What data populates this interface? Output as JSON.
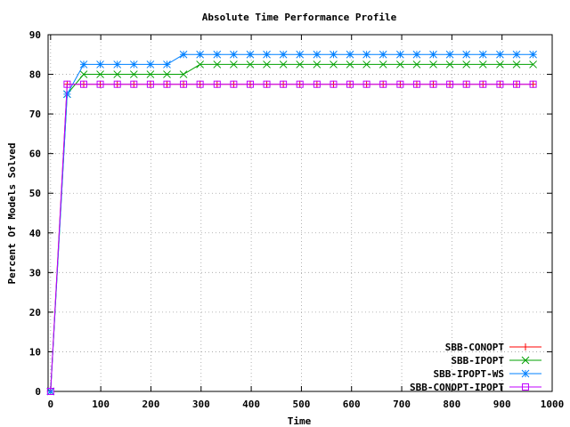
{
  "chart_data": {
    "type": "line",
    "title": "Absolute Time Performance Profile",
    "xlabel": "Time",
    "ylabel": "Percent Of Models Solved",
    "xlim": [
      -5,
      1000
    ],
    "ylim": [
      0,
      90
    ],
    "x_ticks": [
      0,
      100,
      200,
      300,
      400,
      500,
      600,
      700,
      800,
      900,
      1000
    ],
    "y_ticks": [
      0,
      10,
      20,
      30,
      40,
      50,
      60,
      70,
      80,
      90
    ],
    "grid": true,
    "legend_position": "bottom-right",
    "series": [
      {
        "name": "SBB-CONOPT",
        "color": "#ff0000",
        "marker": "plus",
        "x": [
          0,
          33,
          66,
          99,
          133,
          166,
          199,
          232,
          265,
          298,
          332,
          365,
          398,
          431,
          464,
          497,
          531,
          564,
          597,
          630,
          663,
          697,
          730,
          763,
          796,
          829,
          862,
          896,
          929,
          962
        ],
        "y": [
          0,
          77.5,
          77.5,
          77.5,
          77.5,
          77.5,
          77.5,
          77.5,
          77.5,
          77.5,
          77.5,
          77.5,
          77.5,
          77.5,
          77.5,
          77.5,
          77.5,
          77.5,
          77.5,
          77.5,
          77.5,
          77.5,
          77.5,
          77.5,
          77.5,
          77.5,
          77.5,
          77.5,
          77.5,
          77.5
        ]
      },
      {
        "name": "SBB-IPOPT",
        "color": "#00a000",
        "marker": "cross",
        "x": [
          0,
          33,
          66,
          99,
          133,
          166,
          199,
          232,
          265,
          298,
          332,
          365,
          398,
          431,
          464,
          497,
          531,
          564,
          597,
          630,
          663,
          697,
          730,
          763,
          796,
          829,
          862,
          896,
          929,
          962
        ],
        "y": [
          0,
          75,
          80,
          80,
          80,
          80,
          80,
          80,
          80,
          82.5,
          82.5,
          82.5,
          82.5,
          82.5,
          82.5,
          82.5,
          82.5,
          82.5,
          82.5,
          82.5,
          82.5,
          82.5,
          82.5,
          82.5,
          82.5,
          82.5,
          82.5,
          82.5,
          82.5,
          82.5
        ]
      },
      {
        "name": "SBB-IPOPT-WS",
        "color": "#0080ff",
        "marker": "star",
        "x": [
          0,
          33,
          66,
          99,
          133,
          166,
          199,
          232,
          265,
          298,
          332,
          365,
          398,
          431,
          464,
          497,
          531,
          564,
          597,
          630,
          663,
          697,
          730,
          763,
          796,
          829,
          862,
          896,
          929,
          962
        ],
        "y": [
          0,
          75,
          82.5,
          82.5,
          82.5,
          82.5,
          82.5,
          82.5,
          85,
          85,
          85,
          85,
          85,
          85,
          85,
          85,
          85,
          85,
          85,
          85,
          85,
          85,
          85,
          85,
          85,
          85,
          85,
          85,
          85,
          85
        ]
      },
      {
        "name": "SBB-CONOPT-IPOPT",
        "color": "#c000ff",
        "marker": "square",
        "x": [
          0,
          33,
          66,
          99,
          133,
          166,
          199,
          232,
          265,
          298,
          332,
          365,
          398,
          431,
          464,
          497,
          531,
          564,
          597,
          630,
          663,
          697,
          730,
          763,
          796,
          829,
          862,
          896,
          929,
          962
        ],
        "y": [
          0,
          77.5,
          77.5,
          77.5,
          77.5,
          77.5,
          77.5,
          77.5,
          77.5,
          77.5,
          77.5,
          77.5,
          77.5,
          77.5,
          77.5,
          77.5,
          77.5,
          77.5,
          77.5,
          77.5,
          77.5,
          77.5,
          77.5,
          77.5,
          77.5,
          77.5,
          77.5,
          77.5,
          77.5,
          77.5
        ]
      }
    ]
  }
}
